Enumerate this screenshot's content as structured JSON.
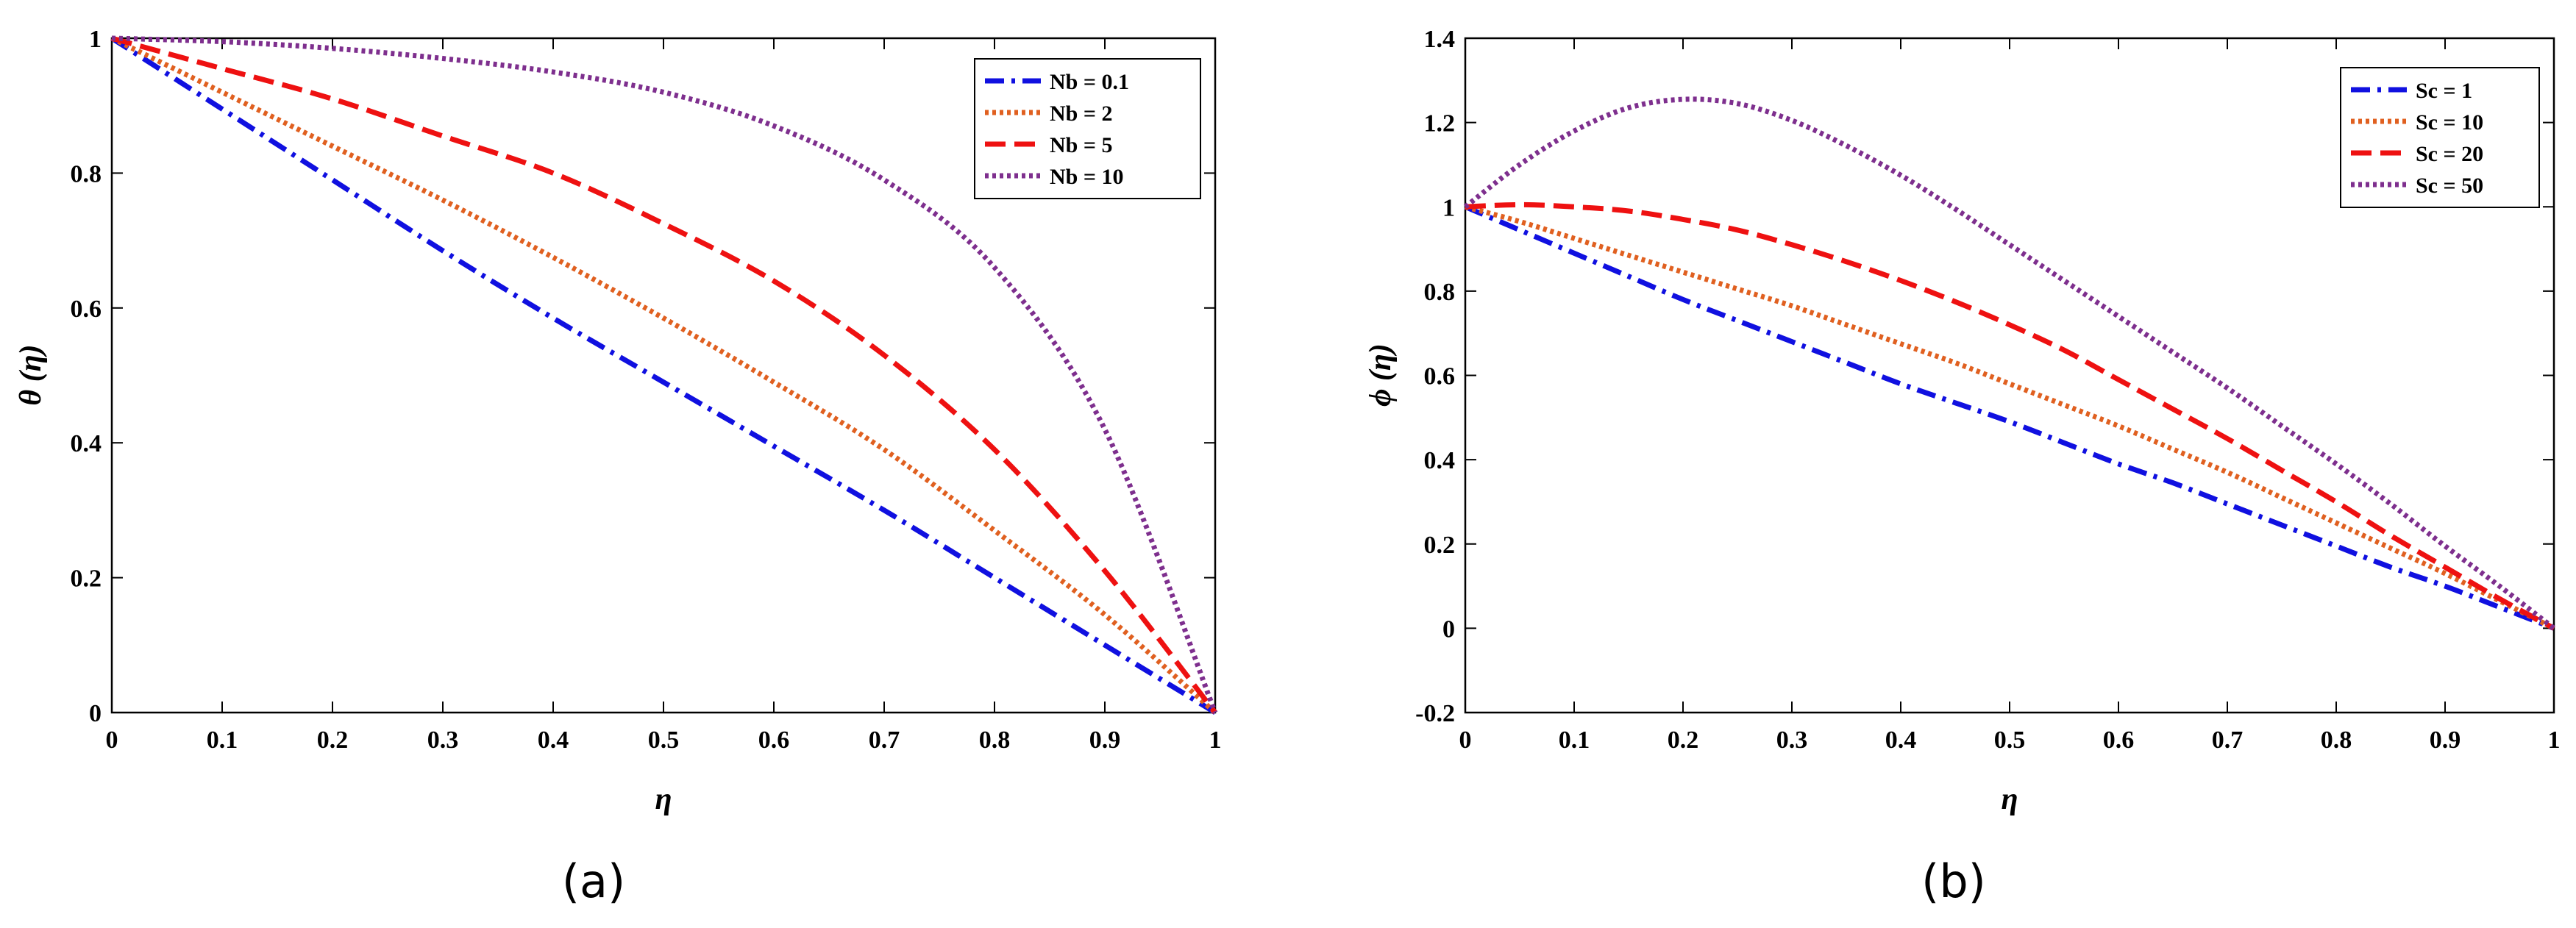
{
  "chart_data": [
    {
      "type": "line",
      "caption": "(a)",
      "xlabel": "η",
      "ylabel": "θ (η)",
      "xlim": [
        0,
        1
      ],
      "ylim": [
        0,
        1
      ],
      "xticks": [
        0,
        0.1,
        0.2,
        0.3,
        0.4,
        0.5,
        0.6,
        0.7,
        0.8,
        0.9,
        1
      ],
      "xtick_labels": [
        "0",
        "0.1",
        "0.2",
        "0.3",
        "0.4",
        "0.5",
        "0.6",
        "0.7",
        "0.8",
        "0.9",
        "1"
      ],
      "yticks": [
        0,
        0.2,
        0.4,
        0.6,
        0.8,
        1
      ],
      "ytick_labels": [
        "0",
        "0.2",
        "0.4",
        "0.6",
        "0.8",
        "1"
      ],
      "legend_position": "top-right",
      "x": [
        0,
        0.1,
        0.2,
        0.3,
        0.4,
        0.5,
        0.6,
        0.7,
        0.8,
        0.9,
        1
      ],
      "series": [
        {
          "name": "Nb = 0.1",
          "color": "#1010e0",
          "dash": "dashdot",
          "values": [
            1,
            0.895,
            0.79,
            0.685,
            0.585,
            0.49,
            0.395,
            0.3,
            0.2,
            0.1,
            0
          ]
        },
        {
          "name": "Nb = 2",
          "color": "#e06020",
          "dash": "dotted",
          "values": [
            1,
            0.92,
            0.84,
            0.76,
            0.675,
            0.585,
            0.49,
            0.39,
            0.27,
            0.145,
            0
          ]
        },
        {
          "name": "Nb = 5",
          "color": "#ee1111",
          "dash": "dashed",
          "values": [
            1,
            0.955,
            0.91,
            0.855,
            0.8,
            0.725,
            0.64,
            0.53,
            0.39,
            0.21,
            0
          ]
        },
        {
          "name": "Nb = 10",
          "color": "#7e2f8e",
          "dash": "dotted",
          "values": [
            1,
            0.995,
            0.985,
            0.97,
            0.95,
            0.92,
            0.87,
            0.79,
            0.66,
            0.42,
            0
          ]
        }
      ]
    },
    {
      "type": "line",
      "caption": "(b)",
      "xlabel": "η",
      "ylabel": "ϕ (η)",
      "xlim": [
        0,
        1
      ],
      "ylim": [
        -0.2,
        1.4
      ],
      "xticks": [
        0,
        0.1,
        0.2,
        0.3,
        0.4,
        0.5,
        0.6,
        0.7,
        0.8,
        0.9,
        1
      ],
      "xtick_labels": [
        "0",
        "0.1",
        "0.2",
        "0.3",
        "0.4",
        "0.5",
        "0.6",
        "0.7",
        "0.8",
        "0.9",
        "1"
      ],
      "yticks": [
        -0.2,
        0,
        0.2,
        0.4,
        0.6,
        0.8,
        1,
        1.2,
        1.4
      ],
      "ytick_labels": [
        "-0.2",
        "0",
        "0.2",
        "0.4",
        "0.6",
        "0.8",
        "1",
        "1.2",
        "1.4"
      ],
      "legend_position": "top-right",
      "x": [
        0,
        0.05,
        0.1,
        0.15,
        0.2,
        0.25,
        0.3,
        0.35,
        0.4,
        0.45,
        0.5,
        0.55,
        0.6,
        0.65,
        0.7,
        0.75,
        0.8,
        0.85,
        0.9,
        0.95,
        1
      ],
      "series": [
        {
          "name": "Sc = 1",
          "color": "#1010e0",
          "dash": "dashdot",
          "values": [
            1,
            0.945,
            0.89,
            0.835,
            0.78,
            0.73,
            0.68,
            0.63,
            0.58,
            0.535,
            0.49,
            0.44,
            0.39,
            0.345,
            0.295,
            0.245,
            0.195,
            0.145,
            0.1,
            0.05,
            0
          ]
        },
        {
          "name": "Sc = 10",
          "color": "#e06020",
          "dash": "dotted",
          "values": [
            1,
            0.965,
            0.925,
            0.885,
            0.845,
            0.805,
            0.765,
            0.72,
            0.675,
            0.63,
            0.58,
            0.53,
            0.48,
            0.425,
            0.37,
            0.31,
            0.25,
            0.19,
            0.13,
            0.065,
            0
          ]
        },
        {
          "name": "Sc = 20",
          "color": "#ee1111",
          "dash": "dashed",
          "values": [
            1,
            1.005,
            1,
            0.99,
            0.97,
            0.945,
            0.91,
            0.87,
            0.825,
            0.775,
            0.72,
            0.66,
            0.59,
            0.52,
            0.45,
            0.375,
            0.3,
            0.22,
            0.145,
            0.07,
            0
          ]
        },
        {
          "name": "Sc = 50",
          "color": "#7e2f8e",
          "dash": "dotted",
          "values": [
            1,
            1.1,
            1.18,
            1.235,
            1.255,
            1.245,
            1.205,
            1.145,
            1.075,
            0.995,
            0.91,
            0.825,
            0.74,
            0.655,
            0.57,
            0.48,
            0.39,
            0.295,
            0.195,
            0.1,
            0
          ]
        }
      ]
    }
  ]
}
